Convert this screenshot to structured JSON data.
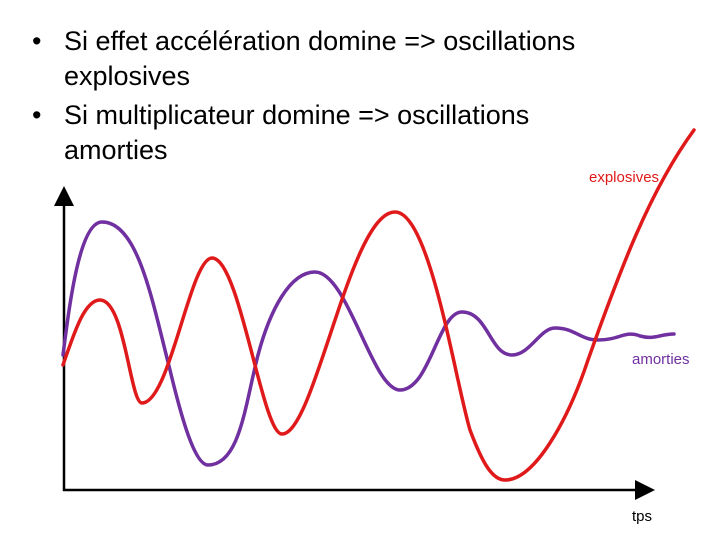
{
  "bullets": [
    {
      "marker": "•",
      "text": "Si effet accélération domine => oscillations explosives"
    },
    {
      "marker": "•",
      "text": "Si multiplicateur domine => oscillations amorties"
    }
  ],
  "diagram": {
    "labels": {
      "explosive": "explosives",
      "damped": "amorties",
      "time_axis": "tps"
    },
    "colors": {
      "explosive": "#e01a1a",
      "damped": "#7030a0",
      "axis": "#000000"
    }
  }
}
